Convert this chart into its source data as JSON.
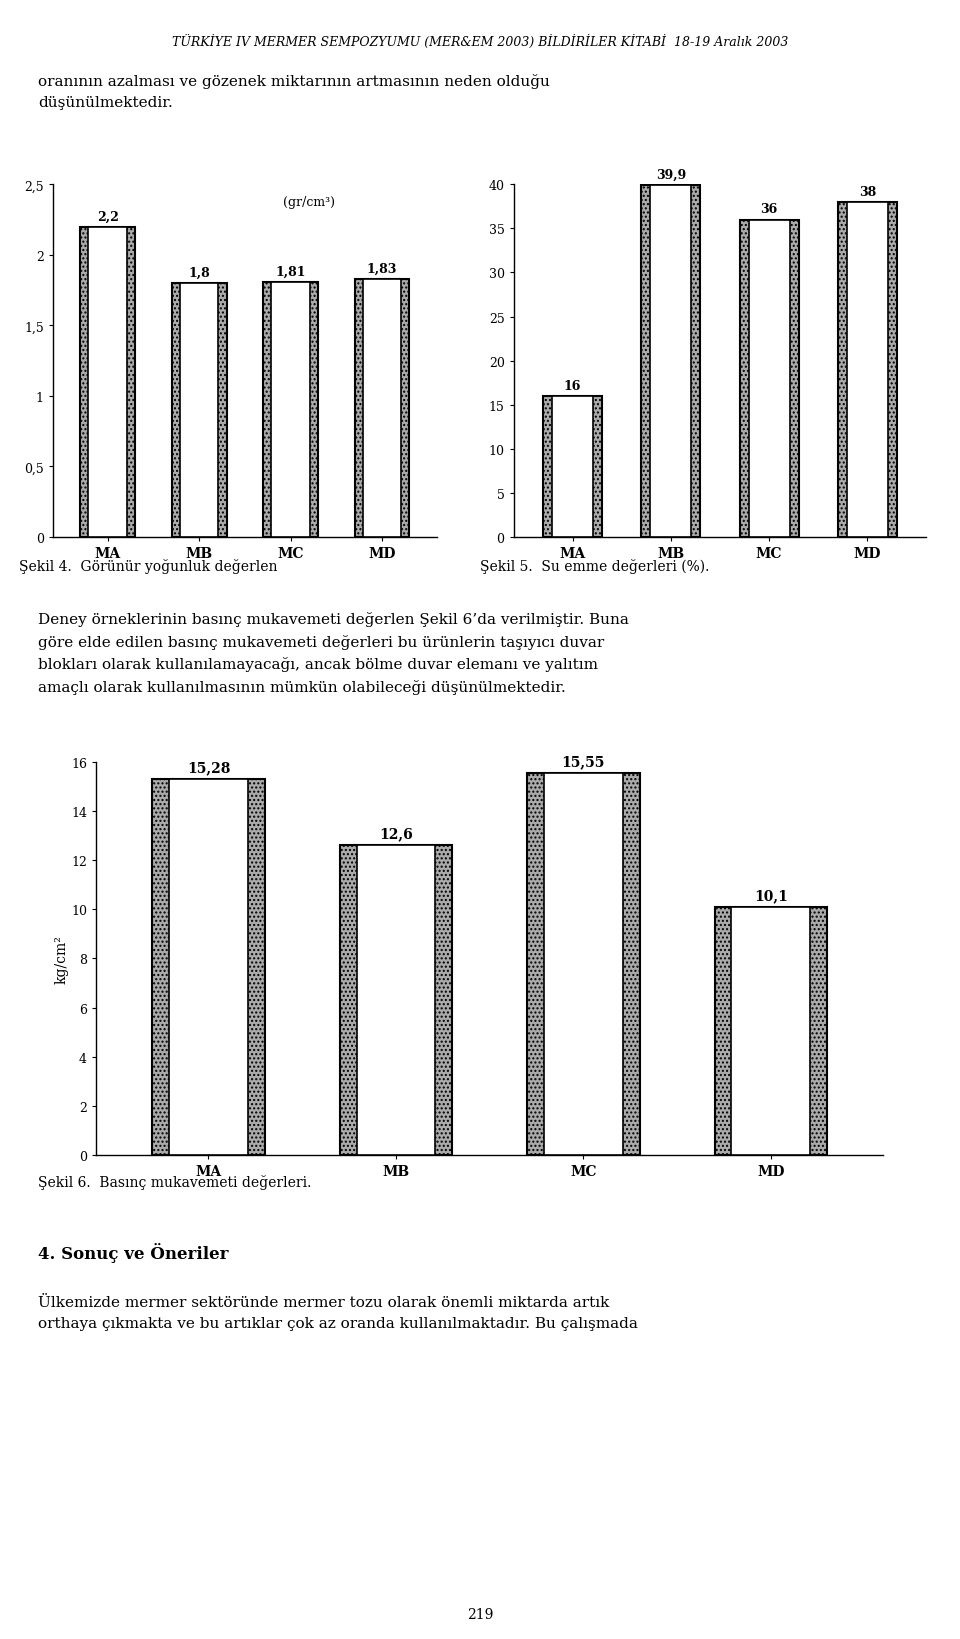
{
  "header": "TÜRKİYE IV MERMER SEMPOZYUMU (MER&EM 2003) BİLDİRİLER KİTABİ  18-19 Aralık 2003",
  "intro_text": "oranının azalması ve gözenek miktarının artmasının neden olduğu\ndüşünülmektedir.",
  "chart1": {
    "categories": [
      "MA",
      "MB",
      "MC",
      "MD"
    ],
    "values": [
      2.2,
      1.8,
      1.81,
      1.83
    ],
    "value_labels": [
      "2,2",
      "1,8",
      "1,81",
      "1,83"
    ],
    "inner_label": "(gr/cm³)",
    "ylim": [
      0,
      2.5
    ],
    "yticks": [
      0,
      0.5,
      1,
      1.5,
      2,
      2.5
    ],
    "ytick_labels": [
      "0",
      "0,5",
      "1",
      "1,5",
      "2",
      "2,5"
    ],
    "caption": "Şekil 4.  Görünür yoğunluk değerlen"
  },
  "chart2": {
    "categories": [
      "MA",
      "MB",
      "MC",
      "MD"
    ],
    "values": [
      16,
      39.9,
      36,
      38
    ],
    "value_labels": [
      "16",
      "39,9",
      "36",
      "38"
    ],
    "ylim": [
      0,
      40
    ],
    "yticks": [
      0,
      5,
      10,
      15,
      20,
      25,
      30,
      35,
      40
    ],
    "ytick_labels": [
      "0",
      "5",
      "10",
      "15",
      "20",
      "25",
      "30",
      "35",
      "40"
    ],
    "caption": "Şekil 5.  Su emme değerleri (%)."
  },
  "middle_text": "Deney örneklerinin basınç mukavemeti değerlen Şekil 6’da verilmiştir. Buna\ngöre elde edilen basınç mukavemeti değerleri bu ürünlerin taşıyıcı duvar\nblokları olarak kullanılamayacağı, ancak bölme duvar elemanı ve yalıtım\namaçlı olarak kullanılmasının mümkün olabileceği düşünülmektedir.",
  "chart3": {
    "categories": [
      "MA",
      "MB",
      "MC",
      "MD"
    ],
    "values": [
      15.28,
      12.6,
      15.55,
      10.1
    ],
    "value_labels": [
      "15,28",
      "12,6",
      "15,55",
      "10,1"
    ],
    "ylabel": "kg/cm²",
    "ylim": [
      0,
      16
    ],
    "yticks": [
      0,
      2,
      4,
      6,
      8,
      10,
      12,
      14,
      16
    ],
    "ytick_labels": [
      "0",
      "2",
      "4",
      "6",
      "8",
      "10",
      "12",
      "14",
      "16"
    ],
    "caption": "Şekil 6.  Basınç mukavemeti değerleri."
  },
  "section_title": "4. Sonuç ve Öneriler",
  "footer_text": "Ülkemizde mermer sektöründe mermer tozu olarak önemli miktarda artık\northaya çıkmakta ve bu artıklar çok az oranda kullanılmaktadır. Bu çalışmada",
  "page_number": "219"
}
